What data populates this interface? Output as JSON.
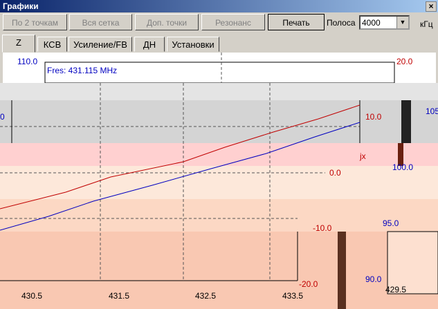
{
  "window": {
    "title": "Графики",
    "close": "×"
  },
  "toolbar": {
    "buttons": [
      "По 2 точкам",
      "Вся сетка",
      "Доп. точки",
      "Резонанс",
      "Печать"
    ],
    "bandwidth_label": "Полоса",
    "bandwidth_value": "4000",
    "unit": "кГц"
  },
  "tabs": [
    "Z",
    "КСВ",
    "Усиление/FB",
    "ДН",
    "Установки"
  ],
  "plot": {
    "y_left_top": "110.0",
    "y_right_top": "20.0",
    "fres": "Fres: 431.115 MHz",
    "labels": [
      "0",
      "10.0",
      "105",
      "jx",
      "0.0",
      "100.0",
      "95.0",
      "-10.0",
      "90.0",
      "-20.0",
      "429.5"
    ],
    "x_ticks": [
      "430.5",
      "431.5",
      "432.5",
      "433.5"
    ]
  }
}
